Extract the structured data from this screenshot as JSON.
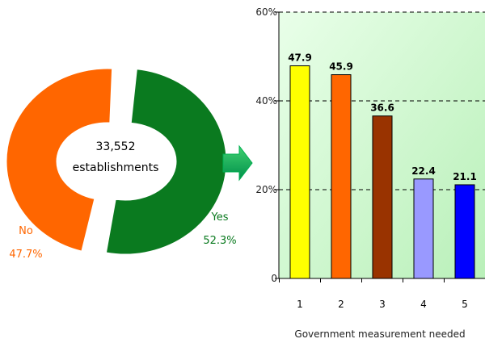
{
  "chart_data": [
    {
      "type": "pie",
      "style": "donut",
      "center_label": [
        "33,552",
        "establishments"
      ],
      "slices": [
        {
          "label": "Yes",
          "percent_label": "52.3%",
          "value": 52.3,
          "color": "#0a7a1f",
          "exploded": true
        },
        {
          "label": "No",
          "percent_label": "47.7%",
          "value": 47.7,
          "color": "#ff6600",
          "exploded": true
        }
      ]
    },
    {
      "type": "bar",
      "categories": [
        "1",
        "2",
        "3",
        "4",
        "5"
      ],
      "values": [
        47.9,
        45.9,
        36.6,
        22.4,
        21.1
      ],
      "data_labels": [
        "47.9",
        "45.9",
        "36.6",
        "22.4",
        "21.1"
      ],
      "colors": [
        "#ffff00",
        "#ff6600",
        "#993300",
        "#9999ff",
        "#0000ff"
      ],
      "ylim": [
        0,
        60
      ],
      "yticks": [
        0,
        20,
        40,
        60
      ],
      "ytick_labels": [
        "0",
        "20%",
        "40%",
        "60%"
      ],
      "xlabel": "Government measurement needed",
      "grid": true,
      "plot_background": "light-green-gradient"
    }
  ],
  "arrow": {
    "color": "#00b050",
    "icon": "right-arrow-icon"
  }
}
